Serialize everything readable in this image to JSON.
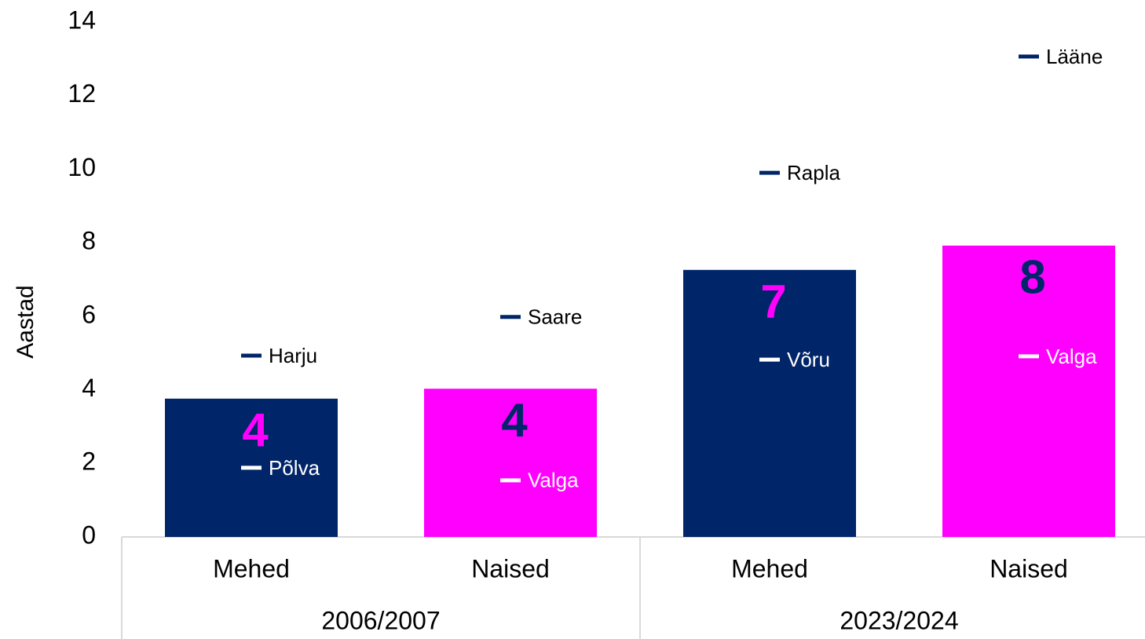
{
  "chart_data": {
    "type": "bar",
    "y_label": "Aastad",
    "ylim": [
      0,
      14
    ],
    "yticks": [
      0,
      2,
      4,
      6,
      8,
      10,
      12,
      14
    ],
    "groups": [
      "2006/2007",
      "2023/2024"
    ],
    "categories": [
      "Mehed",
      "Naised",
      "Mehed",
      "Naised"
    ],
    "values": [
      3.76,
      4.03,
      7.26,
      7.92
    ],
    "value_labels": [
      "4",
      "4",
      "7",
      "8"
    ],
    "colors": [
      "#002569",
      "#ff00ff",
      "#002569",
      "#ff00ff"
    ],
    "value_label_colors": [
      "#ff00ff",
      "#002569",
      "#ff00ff",
      "#002569"
    ],
    "markers": [
      {
        "color": "#002569",
        "label_color": "#000000",
        "values": [
          4.93,
          5.98,
          9.9,
          13.06
        ],
        "labels": [
          "Harju",
          "Saare",
          "Rapla",
          "Lääne"
        ]
      },
      {
        "color": "#ffffff",
        "label_color": "#ffffff",
        "values": [
          1.88,
          1.54,
          4.82,
          4.91
        ],
        "labels": [
          "Põlva",
          "Valga",
          "Võru",
          "Valga"
        ]
      }
    ]
  }
}
